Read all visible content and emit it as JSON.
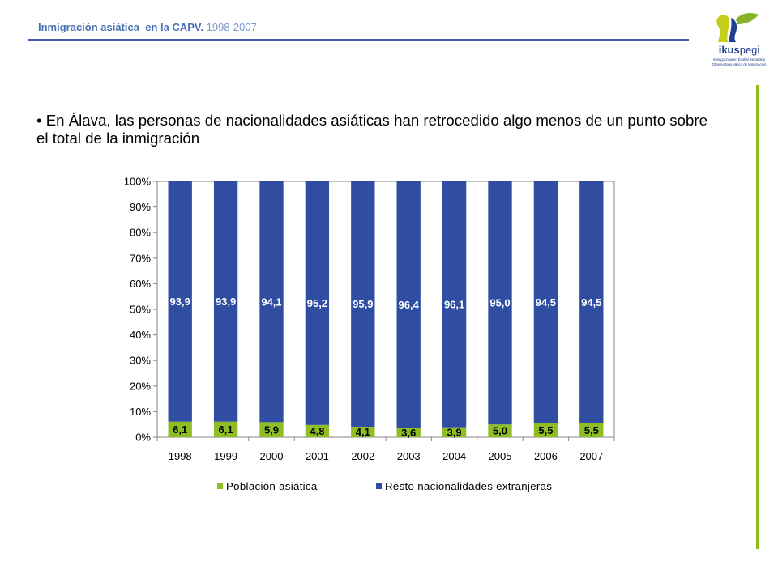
{
  "header": {
    "title": "Inmigración asiática  en la CAPV.",
    "period": "1998-2007"
  },
  "logo": {
    "name_bold": "ikus",
    "name_regular": "pegi",
    "tagline_line1": "Immigrazioaren Euskal Behatokia",
    "tagline_line2": "Observatorio Vasco de Inmigración"
  },
  "bullet_text": "• En Álava, las personas de nacionalidades asiáticas han retrocedido algo menos de un punto sobre el total de la inmigración",
  "colors": {
    "header_title": "#4a71b6",
    "header_period": "#7b98cc",
    "header_rule": "#3c5ea9",
    "accent_line": "#8dba1e",
    "logo_blue": "#22408f",
    "logo_lime": "#c5cf1a",
    "logo_green": "#86b32b"
  },
  "chart_data": {
    "type": "bar",
    "stacked": true,
    "normalized_percent": true,
    "categories": [
      "1998",
      "1999",
      "2000",
      "2001",
      "2002",
      "2003",
      "2004",
      "2005",
      "2006",
      "2007"
    ],
    "series": [
      {
        "name": "Población asiática",
        "color": "#8fbe24",
        "label_color": "#000000",
        "values": [
          6.1,
          6.1,
          5.9,
          4.8,
          4.1,
          3.6,
          3.9,
          5.0,
          5.5,
          5.5
        ],
        "labels": [
          "6,1",
          "6,1",
          "5,9",
          "4,8",
          "4,1",
          "3,6",
          "3,9",
          "5,0",
          "5,5",
          "5,5"
        ]
      },
      {
        "name": "Resto nacionalidades extranjeras",
        "color": "#2f4ea1",
        "label_color": "#ffffff",
        "values": [
          93.9,
          93.9,
          94.1,
          95.2,
          95.9,
          96.4,
          96.1,
          95.0,
          94.5,
          94.5
        ],
        "labels": [
          "93,9",
          "93,9",
          "94,1",
          "95,2",
          "95,9",
          "96,4",
          "96,1",
          "95,0",
          "94,5",
          "94,5"
        ]
      }
    ],
    "ylim": [
      0,
      100
    ],
    "yticks": [
      0,
      10,
      20,
      30,
      40,
      50,
      60,
      70,
      80,
      90,
      100
    ],
    "ytick_labels": [
      "0%",
      "10%",
      "20%",
      "30%",
      "40%",
      "50%",
      "60%",
      "70%",
      "80%",
      "90%",
      "100%"
    ],
    "grid": false,
    "legend": "bottom"
  }
}
